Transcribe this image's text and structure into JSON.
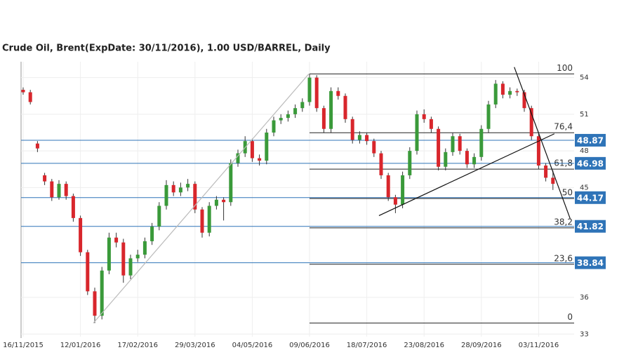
{
  "chart_data": {
    "type": "candlestick",
    "title": "Crude Oil, Brent(ExpDate: 30/11/2016), 1.00 USD/BARREL, Daily",
    "categories": [
      "16/11/2015",
      null,
      null,
      null,
      null,
      null,
      null,
      null,
      "12/01/2016",
      null,
      null,
      null,
      null,
      null,
      null,
      null,
      "17/02/2016",
      null,
      null,
      null,
      null,
      null,
      null,
      null,
      "29/03/2016",
      null,
      null,
      null,
      null,
      null,
      null,
      null,
      "04/05/2016",
      null,
      null,
      null,
      null,
      null,
      null,
      null,
      "09/06/2016",
      null,
      null,
      null,
      null,
      null,
      null,
      null,
      "18/07/2016",
      null,
      null,
      null,
      null,
      null,
      null,
      null,
      "23/08/2016",
      null,
      null,
      null,
      null,
      null,
      null,
      null,
      "28/09/2016",
      null,
      null,
      null,
      null,
      null,
      null,
      null,
      "03/11/2016",
      null,
      null
    ],
    "open": [
      53.0,
      52.8,
      48.6,
      46.0,
      45.5,
      44.2,
      45.3,
      44.3,
      42.5,
      39.7,
      36.5,
      34.5,
      38.2,
      40.9,
      40.5,
      37.8,
      39.2,
      39.5,
      40.6,
      41.8,
      43.5,
      45.2,
      44.6,
      45.0,
      45.3,
      43.2,
      41.3,
      43.5,
      44.0,
      43.8,
      47.0,
      47.8,
      48.8,
      47.4,
      47.2,
      49.5,
      50.5,
      50.7,
      51.0,
      51.5,
      52.0,
      54.0,
      51.5,
      49.8,
      52.9,
      52.5,
      50.6,
      48.9,
      49.3,
      48.8,
      47.8,
      46.0,
      44.2,
      43.6,
      46.0,
      48.0,
      51.0,
      50.6,
      49.8,
      46.7,
      47.9,
      49.2,
      48.0,
      46.9,
      47.5,
      49.8,
      51.8,
      53.5,
      52.6,
      52.9,
      52.8,
      51.5,
      49.2,
      46.8,
      45.8
    ],
    "high": [
      53.2,
      53.0,
      48.8,
      46.2,
      45.7,
      45.6,
      45.5,
      44.5,
      42.7,
      39.9,
      36.8,
      38.5,
      41.3,
      41.3,
      40.8,
      39.5,
      39.9,
      40.9,
      42.1,
      43.8,
      45.6,
      45.5,
      45.4,
      45.7,
      45.5,
      43.4,
      43.8,
      44.3,
      44.2,
      47.3,
      48.1,
      49.2,
      49.0,
      47.7,
      49.8,
      50.8,
      51.0,
      51.3,
      51.8,
      52.3,
      54.3,
      54.2,
      51.7,
      53.2,
      53.2,
      52.7,
      50.8,
      49.6,
      49.5,
      49.0,
      48.0,
      46.2,
      44.4,
      46.3,
      48.3,
      51.3,
      51.4,
      50.8,
      50.0,
      48.2,
      49.5,
      49.4,
      48.2,
      47.8,
      50.1,
      52.1,
      53.8,
      53.7,
      53.2,
      53.1,
      53.0,
      51.7,
      49.4,
      47.0,
      46.4
    ],
    "low": [
      52.6,
      51.8,
      47.9,
      45.2,
      43.9,
      44.0,
      44.0,
      42.2,
      39.4,
      36.2,
      33.9,
      34.2,
      37.9,
      40.1,
      37.2,
      37.5,
      38.9,
      39.2,
      40.3,
      41.5,
      43.2,
      44.3,
      44.3,
      44.7,
      42.9,
      40.9,
      41.0,
      43.2,
      42.3,
      43.5,
      46.7,
      47.5,
      47.1,
      46.8,
      46.9,
      49.2,
      50.2,
      50.4,
      50.7,
      51.2,
      51.7,
      51.2,
      49.5,
      49.5,
      52.2,
      50.3,
      48.6,
      48.6,
      48.5,
      47.5,
      45.7,
      43.9,
      42.9,
      43.3,
      45.7,
      47.7,
      50.3,
      49.5,
      46.4,
      46.4,
      47.6,
      47.7,
      46.6,
      46.6,
      47.2,
      49.5,
      51.5,
      52.3,
      52.3,
      52.5,
      51.2,
      48.9,
      46.5,
      45.5,
      44.8
    ],
    "close": [
      52.8,
      52.0,
      48.2,
      45.5,
      44.2,
      45.3,
      44.3,
      42.5,
      39.7,
      36.5,
      34.5,
      38.2,
      40.9,
      40.5,
      37.8,
      39.2,
      39.5,
      40.6,
      41.8,
      43.5,
      45.2,
      44.6,
      45.0,
      45.3,
      43.2,
      41.3,
      43.5,
      44.0,
      43.8,
      47.0,
      47.8,
      48.8,
      47.4,
      47.2,
      49.5,
      50.5,
      50.7,
      51.0,
      51.5,
      52.0,
      54.0,
      51.5,
      49.8,
      52.9,
      52.5,
      50.6,
      48.9,
      49.3,
      48.8,
      47.8,
      46.0,
      44.2,
      43.6,
      46.0,
      48.0,
      51.0,
      50.6,
      49.8,
      46.7,
      47.9,
      49.2,
      48.0,
      46.9,
      47.5,
      49.8,
      51.8,
      53.5,
      52.6,
      52.9,
      52.8,
      51.5,
      49.2,
      46.8,
      45.8,
      45.3
    ],
    "up_color": "#3a9a3a",
    "down_color": "#d8262c",
    "ylim": [
      32.5,
      55.3
    ],
    "yticks": [
      33,
      36,
      45,
      48,
      51,
      54
    ],
    "grid": true,
    "price_lines": [
      48.87,
      46.98,
      44.17,
      41.82,
      38.84
    ],
    "price_line_color": "#2f74b8",
    "fib_range": [
      33.9,
      54.3
    ],
    "fib_levels": [
      100,
      {
        "value": 76.4,
        "label": "76,4"
      },
      {
        "value": 61.8,
        "label": "61,8"
      },
      50,
      {
        "value": 38.2,
        "label": "38,2"
      },
      {
        "value": 23.6,
        "label": "23,6"
      },
      0
    ],
    "fib_start": 40,
    "trendlines": [
      {
        "x": [
          9.8,
          39.9
        ],
        "y": [
          33.9,
          54.3
        ],
        "color": "#bbbbbb"
      },
      {
        "x": [
          49.7,
          74.2
        ],
        "y": [
          42.7,
          49.4
        ],
        "color": "#111111"
      },
      {
        "x": [
          68.6,
          76.4
        ],
        "y": [
          54.86,
          42.46
        ],
        "color": "#111111"
      }
    ]
  }
}
